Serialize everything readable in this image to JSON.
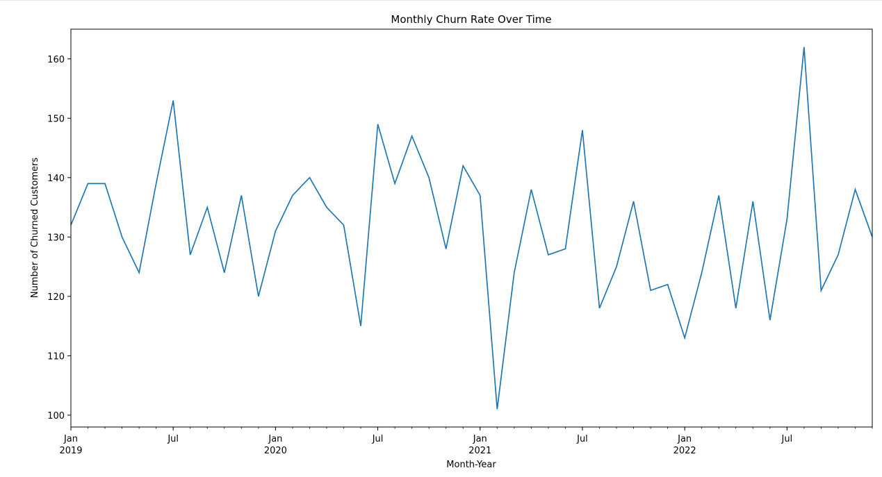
{
  "chart_data": {
    "type": "line",
    "title": "Monthly Churn Rate Over Time",
    "xlabel": "Month-Year",
    "ylabel": "Number of Churned Customers",
    "x_start": "2019-01",
    "x_end": "2022-12",
    "ylim": [
      98,
      165
    ],
    "yticks": [
      100,
      110,
      120,
      130,
      140,
      150,
      160
    ],
    "xticks": [
      {
        "x": "2019-01",
        "label": "Jan",
        "sublabel": "2019"
      },
      {
        "x": "2019-07",
        "label": "Jul",
        "sublabel": ""
      },
      {
        "x": "2020-01",
        "label": "Jan",
        "sublabel": "2020"
      },
      {
        "x": "2020-07",
        "label": "Jul",
        "sublabel": ""
      },
      {
        "x": "2021-01",
        "label": "Jan",
        "sublabel": "2021"
      },
      {
        "x": "2021-07",
        "label": "Jul",
        "sublabel": ""
      },
      {
        "x": "2022-01",
        "label": "Jan",
        "sublabel": "2022"
      },
      {
        "x": "2022-07",
        "label": "Jul",
        "sublabel": ""
      }
    ],
    "grid": false,
    "series": [
      {
        "color": "#1f77b4",
        "x": [
          "2019-01",
          "2019-02",
          "2019-03",
          "2019-04",
          "2019-05",
          "2019-06",
          "2019-07",
          "2019-08",
          "2019-09",
          "2019-10",
          "2019-11",
          "2019-12",
          "2020-01",
          "2020-02",
          "2020-03",
          "2020-04",
          "2020-05",
          "2020-06",
          "2020-07",
          "2020-08",
          "2020-09",
          "2020-10",
          "2020-11",
          "2020-12",
          "2021-01",
          "2021-02",
          "2021-03",
          "2021-04",
          "2021-05",
          "2021-06",
          "2021-07",
          "2021-08",
          "2021-09",
          "2021-10",
          "2021-11",
          "2021-12",
          "2022-01",
          "2022-02",
          "2022-03",
          "2022-04",
          "2022-05",
          "2022-06",
          "2022-07",
          "2022-08",
          "2022-09",
          "2022-10",
          "2022-11",
          "2022-12"
        ],
        "values": [
          132,
          139,
          139,
          130,
          124,
          139,
          153,
          127,
          135,
          124,
          137,
          120,
          131,
          137,
          140,
          135,
          132,
          115,
          149,
          139,
          147,
          140,
          128,
          142,
          137,
          101,
          124,
          138,
          127,
          128,
          148,
          118,
          125,
          136,
          121,
          122,
          113,
          124,
          137,
          118,
          136,
          116,
          133,
          162,
          121,
          127,
          138,
          130
        ]
      }
    ]
  }
}
